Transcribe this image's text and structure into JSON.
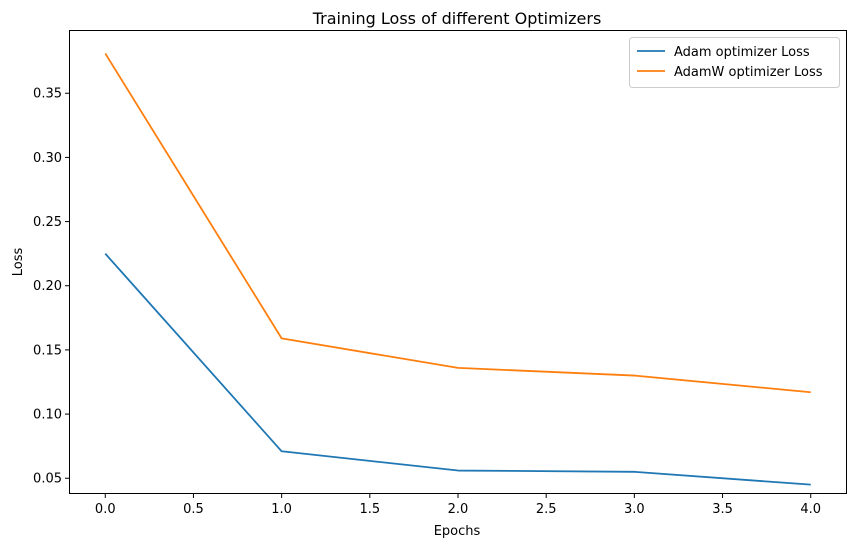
{
  "chart_data": {
    "type": "line",
    "title": "Training Loss of different Optimizers",
    "xlabel": "Epochs",
    "ylabel": "Loss",
    "x": [
      0,
      1,
      2,
      3,
      4
    ],
    "xlim": [
      -0.2,
      4.2
    ],
    "ylim": [
      0.0385,
      0.3985
    ],
    "xticks": [
      0.0,
      0.5,
      1.0,
      1.5,
      2.0,
      2.5,
      3.0,
      3.5,
      4.0
    ],
    "xtick_labels": [
      "0.0",
      "0.5",
      "1.0",
      "1.5",
      "2.0",
      "2.5",
      "3.0",
      "3.5",
      "4.0"
    ],
    "yticks": [
      0.05,
      0.1,
      0.15,
      0.2,
      0.25,
      0.3,
      0.35
    ],
    "ytick_labels": [
      "0.05",
      "0.10",
      "0.15",
      "0.20",
      "0.25",
      "0.30",
      "0.35"
    ],
    "grid": false,
    "legend_position": "top-right",
    "series": [
      {
        "name": "Adam optimizer Loss",
        "color": "#1f77b4",
        "values": [
          0.225,
          0.071,
          0.056,
          0.055,
          0.045
        ]
      },
      {
        "name": "AdamW optimizer Loss",
        "color": "#ff7f0e",
        "values": [
          0.381,
          0.159,
          0.136,
          0.13,
          0.117
        ]
      }
    ]
  }
}
